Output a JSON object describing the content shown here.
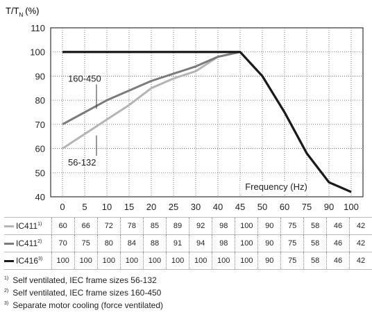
{
  "chart_data": {
    "type": "line",
    "ylabel_main": "T/T",
    "ylabel_sub": "N",
    "ylabel_unit": "(%)",
    "xlabel": "Frequency (Hz)",
    "x": [
      "0",
      "5",
      "10",
      "15",
      "20",
      "25",
      "30",
      "40",
      "45",
      "50",
      "60",
      "75",
      "90",
      "100"
    ],
    "yticks": [
      40,
      50,
      60,
      70,
      80,
      90,
      100,
      110
    ],
    "ylim": [
      40,
      110
    ],
    "grid": true,
    "series": [
      {
        "name": "IC411",
        "note": "1)",
        "color": "#b4b4b4",
        "values": [
          60,
          66,
          72,
          78,
          85,
          89,
          92,
          98,
          100,
          90,
          75,
          58,
          46,
          42
        ]
      },
      {
        "name": "IC411",
        "note": "2)",
        "color": "#7b7b7b",
        "values": [
          70,
          75,
          80,
          84,
          88,
          91,
          94,
          98,
          100,
          90,
          75,
          58,
          46,
          42
        ]
      },
      {
        "name": "IC416",
        "note": "3)",
        "color": "#1a1a1a",
        "values": [
          100,
          100,
          100,
          100,
          100,
          100,
          100,
          100,
          100,
          90,
          75,
          58,
          46,
          42
        ]
      }
    ],
    "annotations": [
      {
        "text": "160-450",
        "x_index": 1,
        "y": 86
      },
      {
        "text": "56-132",
        "x_index": 1,
        "y": 57
      }
    ]
  },
  "footnotes": [
    {
      "mark": "1)",
      "text": "Self ventilated, IEC frame sizes 56-132"
    },
    {
      "mark": "2)",
      "text": "Self ventilated, IEC frame sizes 160-450"
    },
    {
      "mark": "3)",
      "text": "Separate motor cooling (force ventilated)"
    }
  ]
}
